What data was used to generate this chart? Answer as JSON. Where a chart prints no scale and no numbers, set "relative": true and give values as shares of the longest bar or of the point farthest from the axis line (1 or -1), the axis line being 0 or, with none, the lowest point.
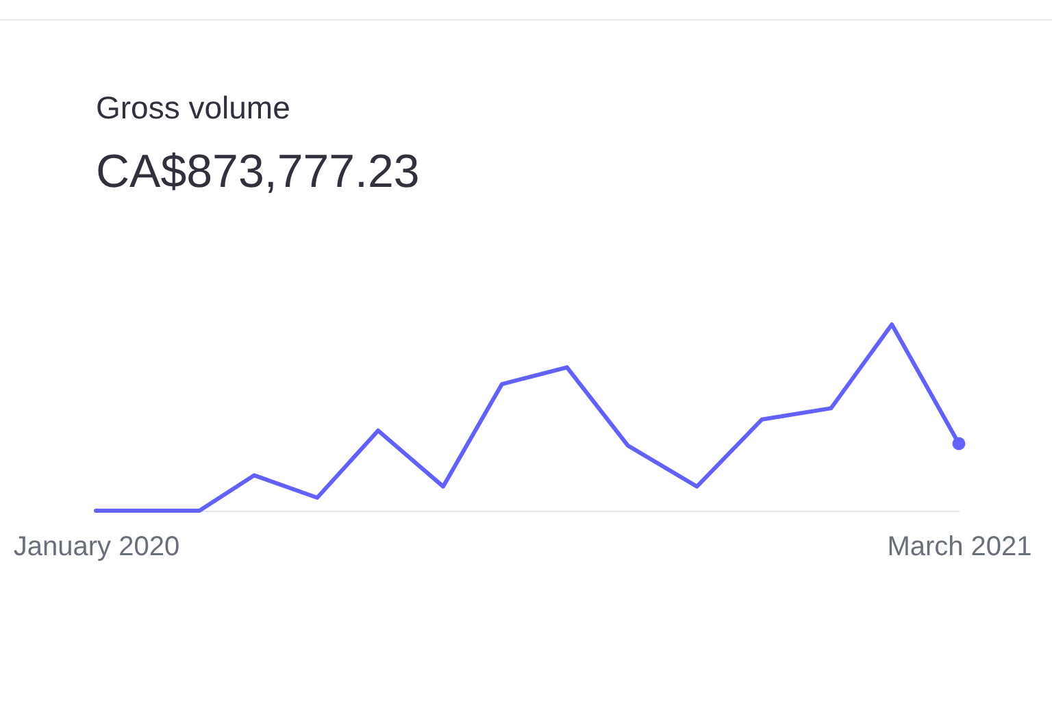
{
  "chart_data": {
    "type": "line",
    "title": "Gross volume",
    "subtitle": "CA$873,777.23",
    "relative": true,
    "x": [
      "2020-01-01",
      "2020-02-21",
      "2020-03-19",
      "2020-04-19",
      "2020-05-19",
      "2020-06-20",
      "2020-07-19",
      "2020-08-20",
      "2020-09-19",
      "2020-10-23",
      "2020-11-24",
      "2020-12-28",
      "2021-01-27",
      "2021-03-01"
    ],
    "xlim": [
      "2020-01-01",
      "2021-03-01"
    ],
    "xticks": [
      {
        "value": "2020-01-01",
        "label": "January 2020"
      },
      {
        "value": "2021-03-01",
        "label": "March 2021"
      }
    ],
    "tick_labels": "x",
    "series": [
      {
        "color": "#6461fa",
        "values": [
          0,
          0,
          0.19,
          0.07,
          0.43,
          0.13,
          0.68,
          0.77,
          0.35,
          0.13,
          0.49,
          0.55,
          1,
          0.36
        ]
      }
    ]
  }
}
